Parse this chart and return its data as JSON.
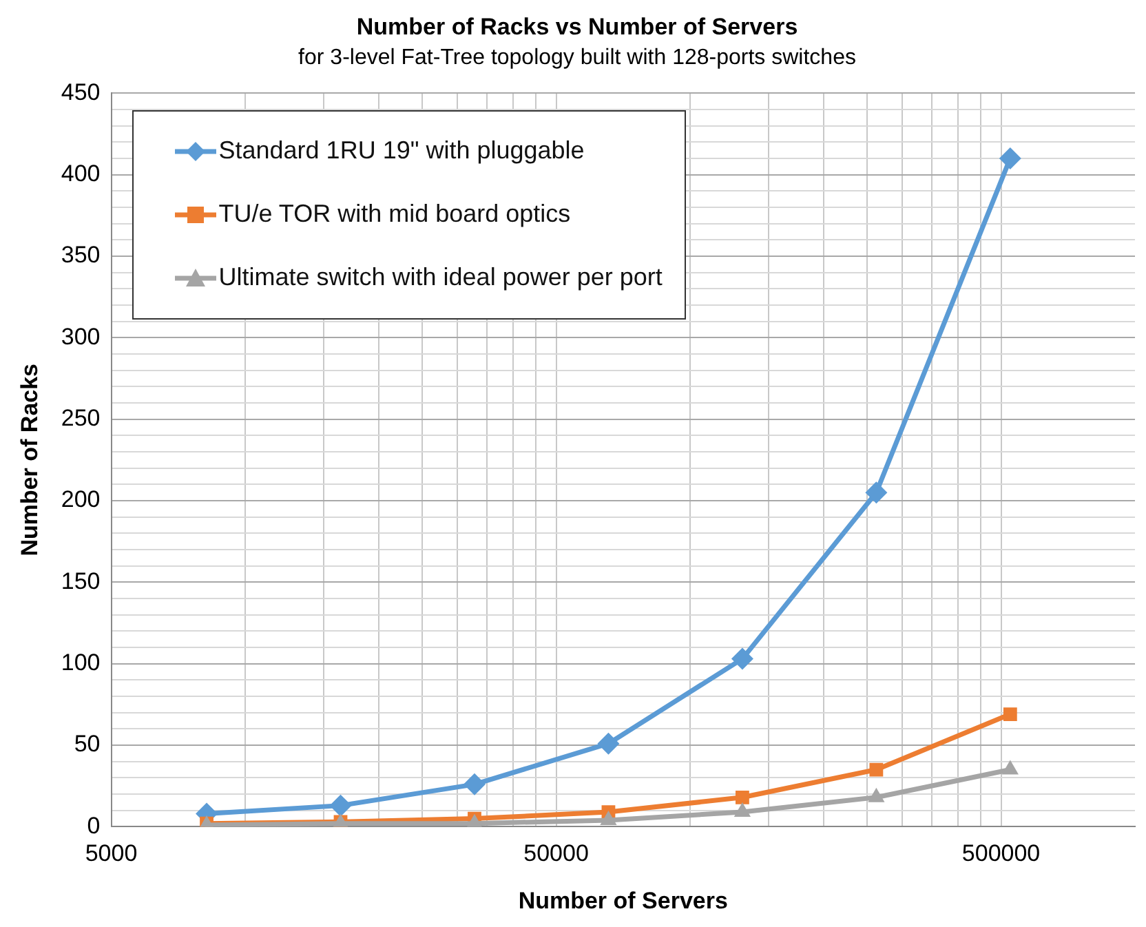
{
  "chart_data": {
    "type": "line",
    "title": "Number of Racks vs Number of Servers",
    "subtitle": "for 3-level Fat-Tree topology built with 128-ports switches",
    "xlabel": "Number of Servers",
    "ylabel": "Number of Racks",
    "log": "x",
    "x": [
      8192,
      16384,
      32768,
      65536,
      131072,
      262144,
      524288
    ],
    "xlim": [
      5000,
      1000000
    ],
    "xticks": [
      5000,
      {
        "value": 10000,
        "label": null
      },
      {
        "value": 15000,
        "label": null
      },
      {
        "value": 20000,
        "label": null
      },
      {
        "value": 25000,
        "label": null
      },
      {
        "value": 30000,
        "label": null
      },
      {
        "value": 35000,
        "label": null
      },
      {
        "value": 40000,
        "label": null
      },
      {
        "value": 45000,
        "label": null
      },
      50000,
      {
        "value": 100000,
        "label": null
      },
      {
        "value": 150000,
        "label": null
      },
      {
        "value": 200000,
        "label": null
      },
      {
        "value": 250000,
        "label": null
      },
      {
        "value": 300000,
        "label": null
      },
      {
        "value": 350000,
        "label": null
      },
      {
        "value": 400000,
        "label": null
      },
      {
        "value": 450000,
        "label": null
      },
      500000
    ],
    "ylim": [
      0,
      450
    ],
    "yticks": [
      0,
      {
        "value": 10,
        "label": null
      },
      {
        "value": 20,
        "label": null
      },
      {
        "value": 30,
        "label": null
      },
      {
        "value": 40,
        "label": null
      },
      50,
      {
        "value": 60,
        "label": null
      },
      {
        "value": 70,
        "label": null
      },
      {
        "value": 80,
        "label": null
      },
      {
        "value": 90,
        "label": null
      },
      100,
      {
        "value": 110,
        "label": null
      },
      {
        "value": 120,
        "label": null
      },
      {
        "value": 130,
        "label": null
      },
      {
        "value": 140,
        "label": null
      },
      150,
      {
        "value": 160,
        "label": null
      },
      {
        "value": 170,
        "label": null
      },
      {
        "value": 180,
        "label": null
      },
      {
        "value": 190,
        "label": null
      },
      200,
      {
        "value": 210,
        "label": null
      },
      {
        "value": 220,
        "label": null
      },
      {
        "value": 230,
        "label": null
      },
      {
        "value": 240,
        "label": null
      },
      250,
      {
        "value": 260,
        "label": null
      },
      {
        "value": 270,
        "label": null
      },
      {
        "value": 280,
        "label": null
      },
      {
        "value": 290,
        "label": null
      },
      300,
      {
        "value": 310,
        "label": null
      },
      {
        "value": 320,
        "label": null
      },
      {
        "value": 330,
        "label": null
      },
      {
        "value": 340,
        "label": null
      },
      350,
      {
        "value": 360,
        "label": null
      },
      {
        "value": 370,
        "label": null
      },
      {
        "value": 380,
        "label": null
      },
      {
        "value": 390,
        "label": null
      },
      400,
      {
        "value": 410,
        "label": null
      },
      {
        "value": 420,
        "label": null
      },
      {
        "value": 430,
        "label": null
      },
      {
        "value": 440,
        "label": null
      },
      450
    ],
    "grid": true,
    "legend": "top left",
    "line_style": "solid",
    "series": [
      {
        "name": "Standard 1RU 19\" with pluggable",
        "color": "#5b9bd5",
        "marker": "diamond",
        "values": [
          8,
          13,
          26,
          51,
          103,
          205,
          410
        ]
      },
      {
        "name": "TU/e TOR with mid board optics",
        "color": "#ed7d31",
        "marker": "square",
        "values": [
          2,
          3,
          5,
          9,
          18,
          35,
          69
        ]
      },
      {
        "name": "Ultimate switch with ideal power per port",
        "color": "#a5a5a5",
        "marker": "triangle",
        "values": [
          1,
          2,
          2,
          4,
          9,
          18,
          35
        ]
      }
    ]
  }
}
